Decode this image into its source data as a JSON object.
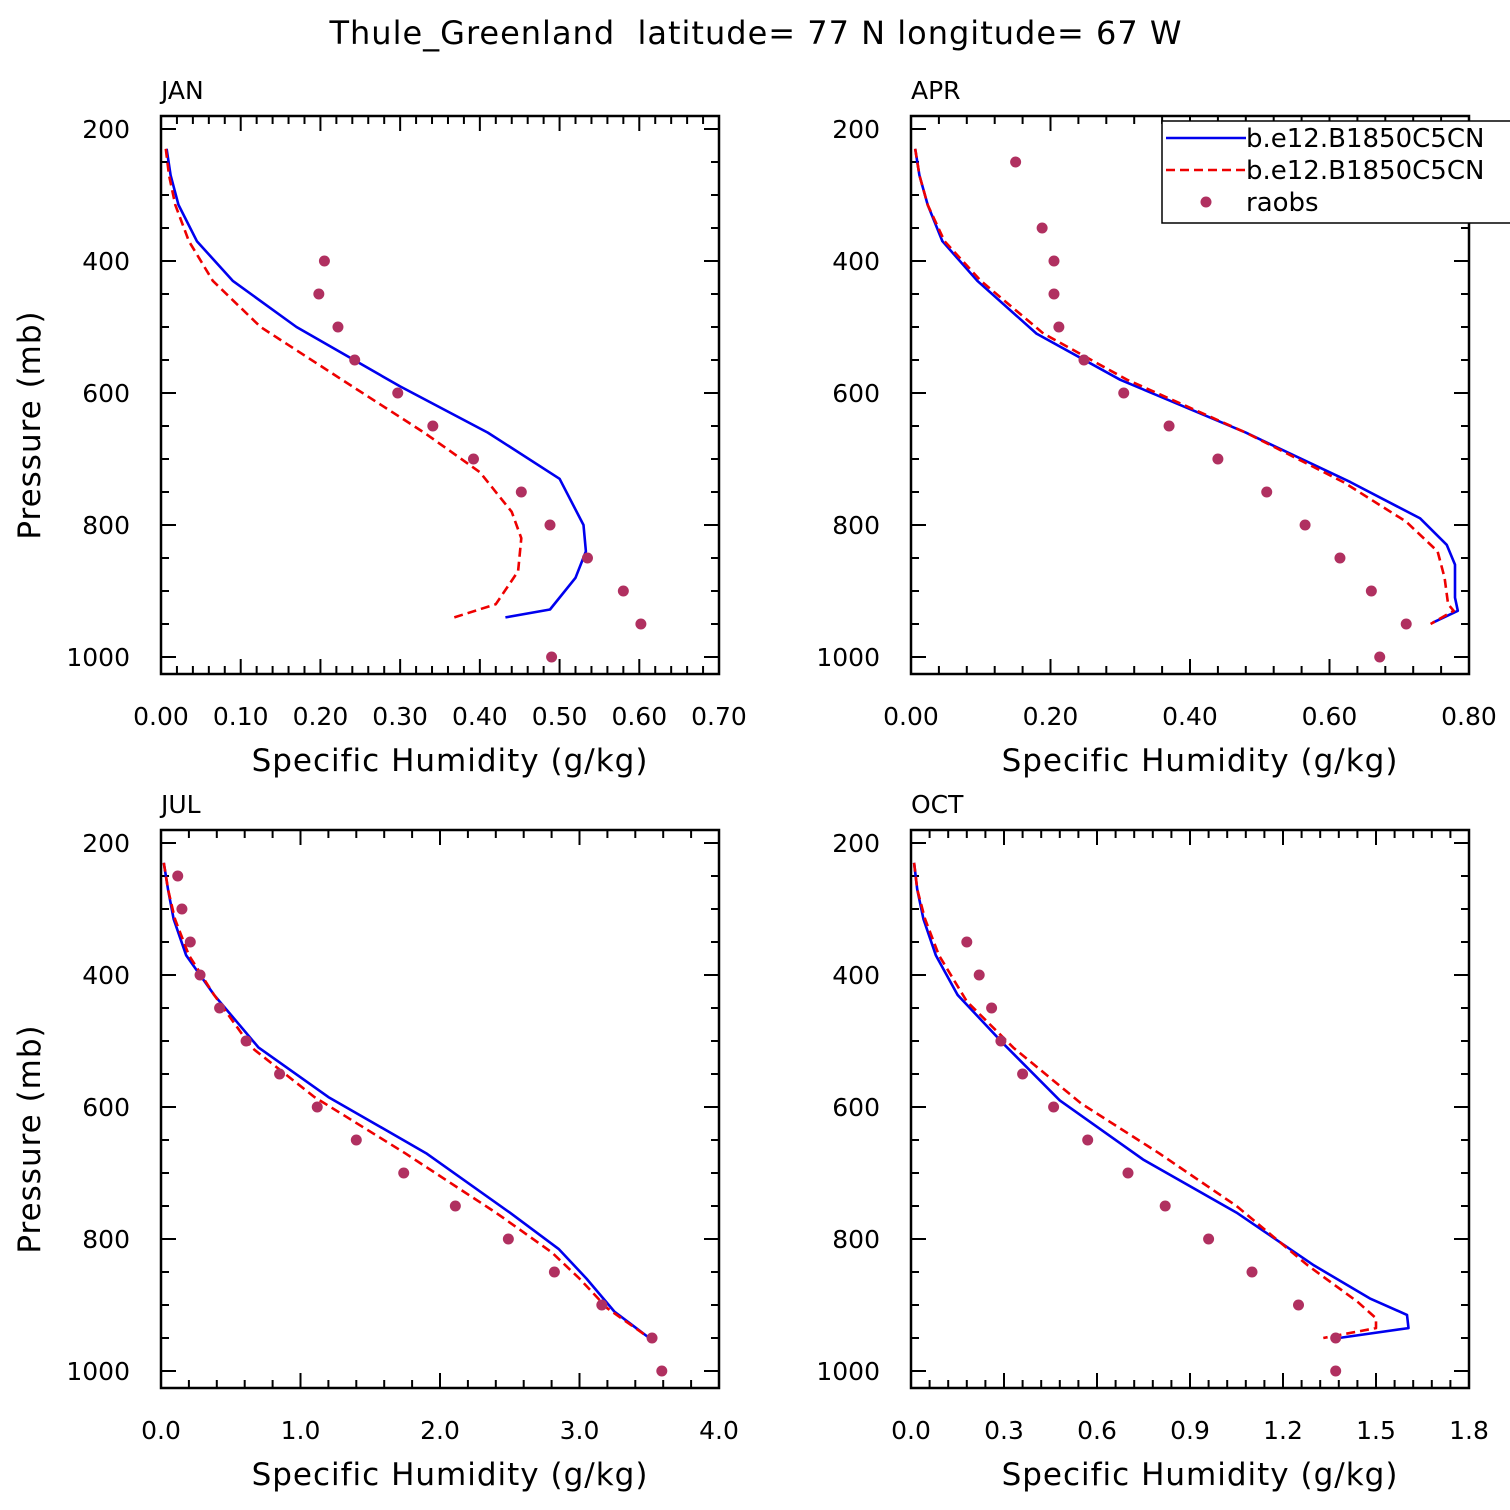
{
  "title": "Thule_Greenland  latitude= 77 N longitude= 67 W",
  "legend": {
    "entries": [
      {
        "label": "b.e12.B1850C5CN",
        "style": "solid",
        "color": "#0000ee"
      },
      {
        "label": "b.e12.B1850C5CN",
        "style": "dashed",
        "color": "#ee0000"
      },
      {
        "label": "raobs",
        "style": "dots",
        "color": "#b03060"
      }
    ]
  },
  "colors": {
    "model1": "#0000ee",
    "model2": "#ee0000",
    "raobs": "#b03060"
  },
  "chart_data": [
    {
      "type": "line",
      "panel": "JAN",
      "xlabel": "Specific Humidity (g/kg)",
      "ylabel": "Pressure (mb)",
      "xlim": [
        0,
        0.7
      ],
      "ylim": [
        1000,
        200
      ],
      "y_reversed": true,
      "xticks": [
        0,
        0.1,
        0.2,
        0.3,
        0.4,
        0.5,
        0.6,
        0.7
      ],
      "xtick_labels": [
        "0.00",
        "0.10",
        "0.20",
        "0.30",
        "0.40",
        "0.50",
        "0.60",
        "0.70"
      ],
      "yticks": [
        200,
        400,
        600,
        800,
        1000
      ],
      "ytick_labels": [
        "200",
        "400",
        "600",
        "800",
        "1000"
      ],
      "series": [
        {
          "name": "b.e12.B1850C5CN",
          "style": "solid",
          "color": "#0000ee",
          "points": [
            [
              0.007,
              230
            ],
            [
              0.012,
              270
            ],
            [
              0.022,
              315
            ],
            [
              0.045,
              370
            ],
            [
              0.09,
              430
            ],
            [
              0.17,
              500
            ],
            [
              0.3,
              590
            ],
            [
              0.41,
              660
            ],
            [
              0.5,
              730
            ],
            [
              0.53,
              800
            ],
            [
              0.533,
              840
            ],
            [
              0.52,
              880
            ],
            [
              0.488,
              928
            ],
            [
              0.432,
              940
            ]
          ]
        },
        {
          "name": "b.e12.B1850C5CN",
          "style": "dashed",
          "color": "#ee0000",
          "points": [
            [
              0.006,
              230
            ],
            [
              0.01,
              270
            ],
            [
              0.018,
              315
            ],
            [
              0.035,
              370
            ],
            [
              0.065,
              430
            ],
            [
              0.125,
              500
            ],
            [
              0.24,
              590
            ],
            [
              0.33,
              660
            ],
            [
              0.4,
              720
            ],
            [
              0.44,
              780
            ],
            [
              0.452,
              820
            ],
            [
              0.448,
              870
            ],
            [
              0.42,
              920
            ],
            [
              0.368,
              940
            ]
          ]
        },
        {
          "name": "raobs",
          "style": "dots",
          "color": "#b03060",
          "points": [
            [
              0.205,
              400
            ],
            [
              0.198,
              450
            ],
            [
              0.222,
              500
            ],
            [
              0.243,
              550
            ],
            [
              0.297,
              600
            ],
            [
              0.341,
              650
            ],
            [
              0.392,
              700
            ],
            [
              0.452,
              750
            ],
            [
              0.488,
              800
            ],
            [
              0.535,
              850
            ],
            [
              0.58,
              900
            ],
            [
              0.602,
              950
            ],
            [
              0.49,
              1000
            ]
          ]
        }
      ]
    },
    {
      "type": "line",
      "panel": "APR",
      "xlabel": "Specific Humidity (g/kg)",
      "ylabel": "",
      "xlim": [
        0,
        0.8
      ],
      "ylim": [
        1000,
        200
      ],
      "y_reversed": true,
      "xticks": [
        0,
        0.2,
        0.4,
        0.6,
        0.8
      ],
      "xtick_labels": [
        "0.00",
        "0.20",
        "0.40",
        "0.60",
        "0.80"
      ],
      "yticks": [
        200,
        400,
        600,
        800,
        1000
      ],
      "ytick_labels": [
        "200",
        "400",
        "600",
        "800",
        "1000"
      ],
      "series": [
        {
          "name": "b.e12.B1850C5CN",
          "style": "solid",
          "color": "#0000ee",
          "points": [
            [
              0.006,
              230
            ],
            [
              0.012,
              270
            ],
            [
              0.024,
              315
            ],
            [
              0.045,
              370
            ],
            [
              0.095,
              430
            ],
            [
              0.18,
              510
            ],
            [
              0.3,
              580
            ],
            [
              0.48,
              660
            ],
            [
              0.63,
              735
            ],
            [
              0.73,
              790
            ],
            [
              0.768,
              830
            ],
            [
              0.78,
              860
            ],
            [
              0.78,
              910
            ],
            [
              0.784,
              930
            ],
            [
              0.748,
              948
            ]
          ]
        },
        {
          "name": "b.e12.B1850C5CN",
          "style": "dashed",
          "color": "#ee0000",
          "points": [
            [
              0.006,
              230
            ],
            [
              0.012,
              270
            ],
            [
              0.024,
              315
            ],
            [
              0.048,
              370
            ],
            [
              0.1,
              430
            ],
            [
              0.19,
              510
            ],
            [
              0.31,
              580
            ],
            [
              0.48,
              660
            ],
            [
              0.62,
              735
            ],
            [
              0.71,
              795
            ],
            [
              0.755,
              840
            ],
            [
              0.765,
              880
            ],
            [
              0.77,
              920
            ],
            [
              0.778,
              930
            ],
            [
              0.745,
              950
            ]
          ]
        },
        {
          "name": "raobs",
          "style": "dots",
          "color": "#b03060",
          "points": [
            [
              0.15,
              250
            ],
            [
              0.188,
              350
            ],
            [
              0.205,
              400
            ],
            [
              0.205,
              450
            ],
            [
              0.212,
              500
            ],
            [
              0.248,
              550
            ],
            [
              0.305,
              600
            ],
            [
              0.37,
              650
            ],
            [
              0.44,
              700
            ],
            [
              0.51,
              750
            ],
            [
              0.565,
              800
            ],
            [
              0.615,
              850
            ],
            [
              0.66,
              900
            ],
            [
              0.71,
              950
            ],
            [
              0.672,
              1000
            ]
          ]
        }
      ]
    },
    {
      "type": "line",
      "panel": "JUL",
      "xlabel": "Specific Humidity (g/kg)",
      "ylabel": "Pressure (mb)",
      "xlim": [
        0,
        4.0
      ],
      "ylim": [
        1000,
        200
      ],
      "y_reversed": true,
      "xticks": [
        0,
        1,
        2,
        3,
        4
      ],
      "xtick_labels": [
        "0.0",
        "1.0",
        "2.0",
        "3.0",
        "4.0"
      ],
      "yticks": [
        200,
        400,
        600,
        800,
        1000
      ],
      "ytick_labels": [
        "200",
        "400",
        "600",
        "800",
        "1000"
      ],
      "series": [
        {
          "name": "b.e12.B1850C5CN",
          "style": "solid",
          "color": "#0000ee",
          "points": [
            [
              0.02,
              230
            ],
            [
              0.05,
              270
            ],
            [
              0.09,
              315
            ],
            [
              0.18,
              370
            ],
            [
              0.38,
              430
            ],
            [
              0.7,
              510
            ],
            [
              1.2,
              585
            ],
            [
              1.9,
              670
            ],
            [
              2.5,
              760
            ],
            [
              2.85,
              815
            ],
            [
              3.05,
              860
            ],
            [
              3.25,
              910
            ],
            [
              3.5,
              950
            ]
          ]
        },
        {
          "name": "b.e12.B1850C5CN",
          "style": "dashed",
          "color": "#ee0000",
          "points": [
            [
              0.02,
              230
            ],
            [
              0.05,
              270
            ],
            [
              0.1,
              315
            ],
            [
              0.2,
              370
            ],
            [
              0.38,
              430
            ],
            [
              0.65,
              510
            ],
            [
              1.1,
              585
            ],
            [
              1.75,
              670
            ],
            [
              2.4,
              760
            ],
            [
              2.8,
              820
            ],
            [
              3.0,
              860
            ],
            [
              3.2,
              905
            ],
            [
              3.5,
              950
            ]
          ]
        },
        {
          "name": "raobs",
          "style": "dots",
          "color": "#b03060",
          "points": [
            [
              0.12,
              250
            ],
            [
              0.15,
              300
            ],
            [
              0.21,
              350
            ],
            [
              0.28,
              400
            ],
            [
              0.42,
              450
            ],
            [
              0.61,
              500
            ],
            [
              0.85,
              550
            ],
            [
              1.12,
              600
            ],
            [
              1.4,
              650
            ],
            [
              1.74,
              700
            ],
            [
              2.11,
              750
            ],
            [
              2.49,
              800
            ],
            [
              2.82,
              850
            ],
            [
              3.16,
              900
            ],
            [
              3.52,
              950
            ],
            [
              3.59,
              1000
            ]
          ]
        }
      ]
    },
    {
      "type": "line",
      "panel": "OCT",
      "xlabel": "Specific Humidity (g/kg)",
      "ylabel": "",
      "xlim": [
        0,
        1.8
      ],
      "ylim": [
        1000,
        200
      ],
      "y_reversed": true,
      "xticks": [
        0,
        0.3,
        0.6,
        0.9,
        1.2,
        1.5,
        1.8
      ],
      "xtick_labels": [
        "0.0",
        "0.3",
        "0.6",
        "0.9",
        "1.2",
        "1.5",
        "1.8"
      ],
      "yticks": [
        200,
        400,
        600,
        800,
        1000
      ],
      "ytick_labels": [
        "200",
        "400",
        "600",
        "800",
        "1000"
      ],
      "series": [
        {
          "name": "b.e12.B1850C5CN",
          "style": "solid",
          "color": "#0000ee",
          "points": [
            [
              0.01,
              230
            ],
            [
              0.02,
              270
            ],
            [
              0.04,
              315
            ],
            [
              0.08,
              370
            ],
            [
              0.15,
              430
            ],
            [
              0.3,
              505
            ],
            [
              0.48,
              590
            ],
            [
              0.75,
              680
            ],
            [
              1.05,
              760
            ],
            [
              1.3,
              840
            ],
            [
              1.48,
              890
            ],
            [
              1.6,
              915
            ],
            [
              1.605,
              935
            ],
            [
              1.38,
              950
            ]
          ]
        },
        {
          "name": "b.e12.B1850C5CN",
          "style": "dashed",
          "color": "#ee0000",
          "points": [
            [
              0.01,
              230
            ],
            [
              0.02,
              270
            ],
            [
              0.045,
              315
            ],
            [
              0.09,
              370
            ],
            [
              0.18,
              440
            ],
            [
              0.33,
              510
            ],
            [
              0.55,
              595
            ],
            [
              0.8,
              670
            ],
            [
              1.05,
              750
            ],
            [
              1.28,
              840
            ],
            [
              1.44,
              895
            ],
            [
              1.5,
              920
            ],
            [
              1.5,
              935
            ],
            [
              1.33,
              950
            ]
          ]
        },
        {
          "name": "raobs",
          "style": "dots",
          "color": "#b03060",
          "points": [
            [
              0.18,
              350
            ],
            [
              0.22,
              400
            ],
            [
              0.26,
              450
            ],
            [
              0.29,
              500
            ],
            [
              0.36,
              550
            ],
            [
              0.46,
              600
            ],
            [
              0.57,
              650
            ],
            [
              0.7,
              700
            ],
            [
              0.82,
              750
            ],
            [
              0.96,
              800
            ],
            [
              1.1,
              850
            ],
            [
              1.25,
              900
            ],
            [
              1.37,
              950
            ],
            [
              1.37,
              1000
            ]
          ]
        }
      ]
    }
  ]
}
